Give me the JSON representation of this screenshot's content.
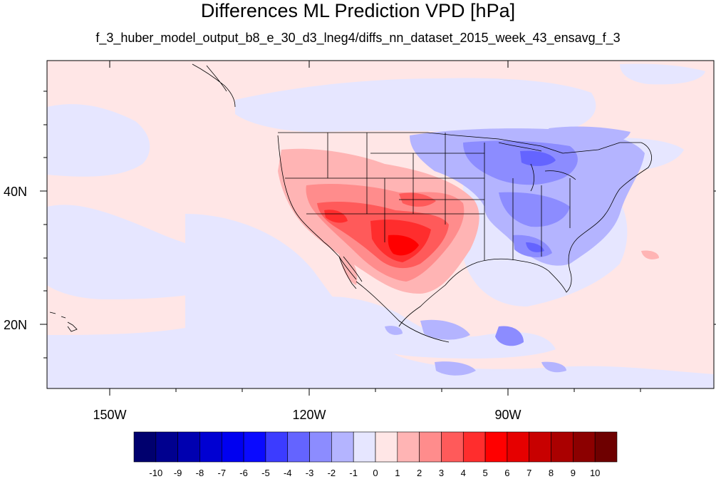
{
  "title": "Differences ML Prediction VPD [hPa]",
  "subtitle": "f_3_huber_model_output_b8_e_30_d3_lneg4/diffs_nn_dataset_2015_week_43_ensavg_f_3",
  "lon_labels": [
    "150W",
    "120W",
    "90W"
  ],
  "lat_labels": [
    "40N",
    "20N"
  ],
  "colorbar": {
    "labels": [
      "-10",
      "-9",
      "-8",
      "-7",
      "-6",
      "-5",
      "-4",
      "-3",
      "-2",
      "-1",
      "0",
      "1",
      "2",
      "3",
      "4",
      "5",
      "6",
      "7",
      "8",
      "9",
      "10"
    ],
    "colors": [
      "#00006e",
      "#00008f",
      "#0000b0",
      "#0000d2",
      "#0000f0",
      "#0a0aff",
      "#3c3cff",
      "#6464ff",
      "#8c8cff",
      "#b4b4ff",
      "#e6e6ff",
      "#ffe6e6",
      "#ffb4b4",
      "#ff8c8c",
      "#ff5a5a",
      "#ff2d2d",
      "#ff0000",
      "#e60000",
      "#c80000",
      "#aa0000",
      "#8c0000",
      "#6e0000"
    ]
  },
  "palette": {
    "background_positive": "#ffe6e6",
    "background_negative": "#e6e6ff"
  }
}
